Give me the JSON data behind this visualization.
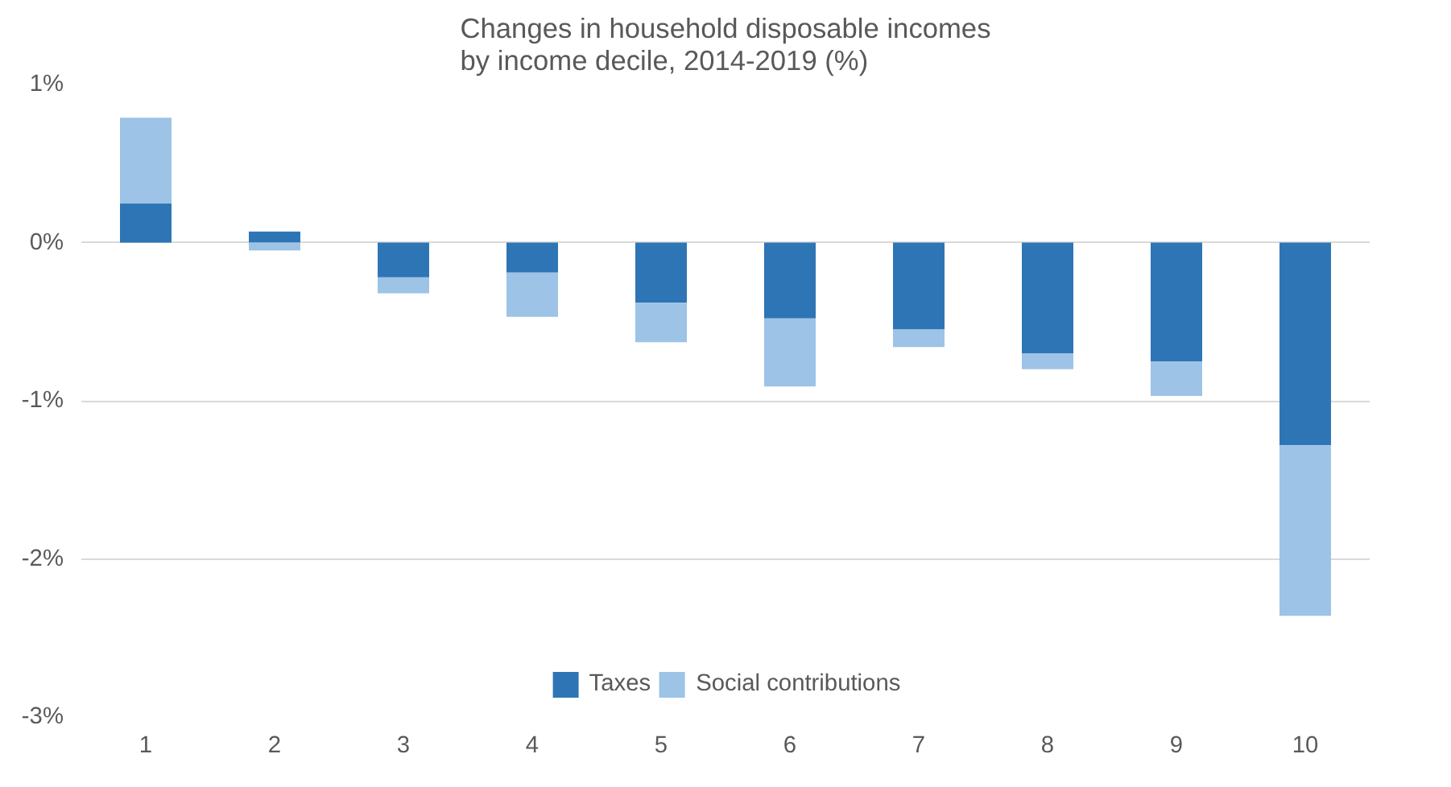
{
  "chart_data": {
    "type": "bar",
    "title": "Changes in household disposable incomes\nby income decile, 2014-2019 (%)",
    "categories": [
      "1",
      "2",
      "3",
      "4",
      "5",
      "6",
      "7",
      "8",
      "9",
      "10"
    ],
    "stacked": true,
    "series": [
      {
        "name": "Taxes",
        "color": "#2e75b6",
        "values": [
          0.25,
          0.07,
          -0.22,
          -0.19,
          -0.38,
          -0.48,
          -0.55,
          -0.7,
          -0.75,
          -1.28
        ]
      },
      {
        "name": "Social contributions",
        "color": "#9dc3e6",
        "values": [
          0.54,
          -0.05,
          -0.1,
          -0.28,
          -0.25,
          -0.43,
          -0.11,
          -0.1,
          -0.22,
          -1.08
        ]
      }
    ],
    "ylim": [
      -3,
      1
    ],
    "yticks": [
      {
        "value": -3,
        "label": "-3%"
      },
      {
        "value": -2,
        "label": "-2%"
      },
      {
        "value": -1,
        "label": "-1%"
      },
      {
        "value": 0,
        "label": "0%"
      },
      {
        "value": 1,
        "label": "1%"
      }
    ],
    "grid": "y",
    "legend": "bottom"
  }
}
